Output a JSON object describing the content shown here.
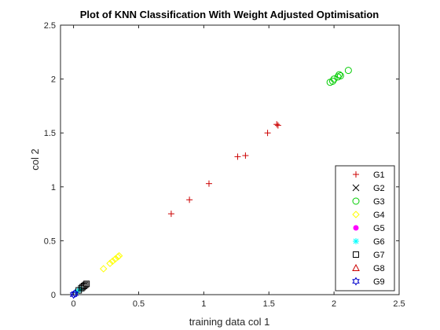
{
  "chart_data": {
    "type": "scatter",
    "title": "Plot of KNN Classification With Weight Adjusted Optimisation",
    "xlabel": "training data col 1",
    "ylabel": "col 2",
    "xlim": [
      -0.1,
      2.5
    ],
    "ylim": [
      0,
      2.5
    ],
    "x_ticks": [
      "0",
      "0.5",
      "1",
      "1.5",
      "2",
      "2.5"
    ],
    "y_ticks": [
      "0",
      "0.5",
      "1",
      "1.5",
      "2",
      "2.5"
    ],
    "grid": false,
    "legend_position": "bottom-right",
    "series": [
      {
        "name": "G1",
        "marker": "plus",
        "color": "#cc0000",
        "points": [
          [
            0.75,
            0.75
          ],
          [
            0.89,
            0.88
          ],
          [
            1.04,
            1.03
          ],
          [
            1.26,
            1.28
          ],
          [
            1.32,
            1.29
          ],
          [
            1.49,
            1.5
          ],
          [
            1.56,
            1.58
          ],
          [
            1.57,
            1.57
          ]
        ]
      },
      {
        "name": "G2",
        "marker": "x",
        "color": "#000000",
        "points": []
      },
      {
        "name": "G3",
        "marker": "circle",
        "color": "#00cc00",
        "points": [
          [
            1.97,
            1.97
          ],
          [
            1.99,
            1.98
          ],
          [
            2.0,
            2.0
          ],
          [
            2.03,
            2.02
          ],
          [
            2.04,
            2.04
          ],
          [
            2.05,
            2.03
          ],
          [
            2.11,
            2.08
          ]
        ]
      },
      {
        "name": "G4",
        "marker": "diamond",
        "color": "#ffff00",
        "points": [
          [
            0.23,
            0.24
          ],
          [
            0.28,
            0.29
          ],
          [
            0.3,
            0.31
          ],
          [
            0.32,
            0.33
          ],
          [
            0.34,
            0.35
          ],
          [
            0.35,
            0.36
          ]
        ]
      },
      {
        "name": "G5",
        "marker": "filled-circle",
        "color": "#ff00ff",
        "points": []
      },
      {
        "name": "G6",
        "marker": "asterisk",
        "color": "#00ffff",
        "points": [
          [
            0.03,
            0.03
          ],
          [
            0.05,
            0.05
          ]
        ]
      },
      {
        "name": "G7",
        "marker": "square",
        "color": "#000000",
        "points": [
          [
            0.04,
            0.04
          ],
          [
            0.06,
            0.06
          ],
          [
            0.07,
            0.07
          ],
          [
            0.08,
            0.08
          ],
          [
            0.09,
            0.09
          ],
          [
            0.1,
            0.1
          ]
        ]
      },
      {
        "name": "G8",
        "marker": "triangle",
        "color": "#cc0000",
        "points": []
      },
      {
        "name": "G9",
        "marker": "hexagram",
        "color": "#0000cc",
        "points": [
          [
            0.0,
            0.0
          ],
          [
            0.01,
            0.01
          ]
        ]
      }
    ]
  }
}
